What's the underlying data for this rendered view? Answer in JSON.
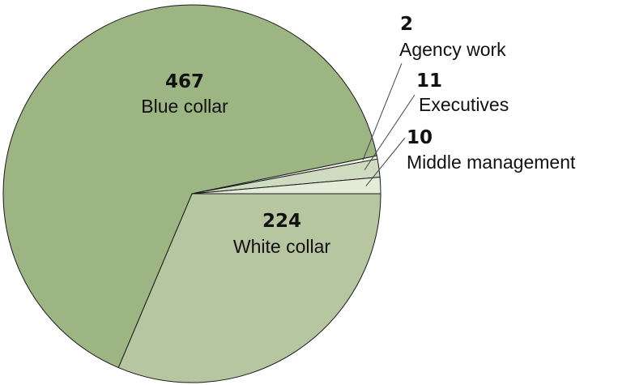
{
  "chart_data": {
    "type": "pie",
    "slices": [
      {
        "label": "White collar",
        "value": 224,
        "color": "#b6c6a1"
      },
      {
        "label": "Blue collar",
        "value": 467,
        "color": "#9db483"
      },
      {
        "label": "Agency work",
        "value": 2,
        "color": "#edf1e6"
      },
      {
        "label": "Executives",
        "value": 11,
        "color": "#cfdbc1"
      },
      {
        "label": "Middle management",
        "value": 10,
        "color": "#e4ecd9"
      }
    ],
    "start": "3 o'clock, clockwise",
    "stroke_color": "#1a1a1a"
  }
}
